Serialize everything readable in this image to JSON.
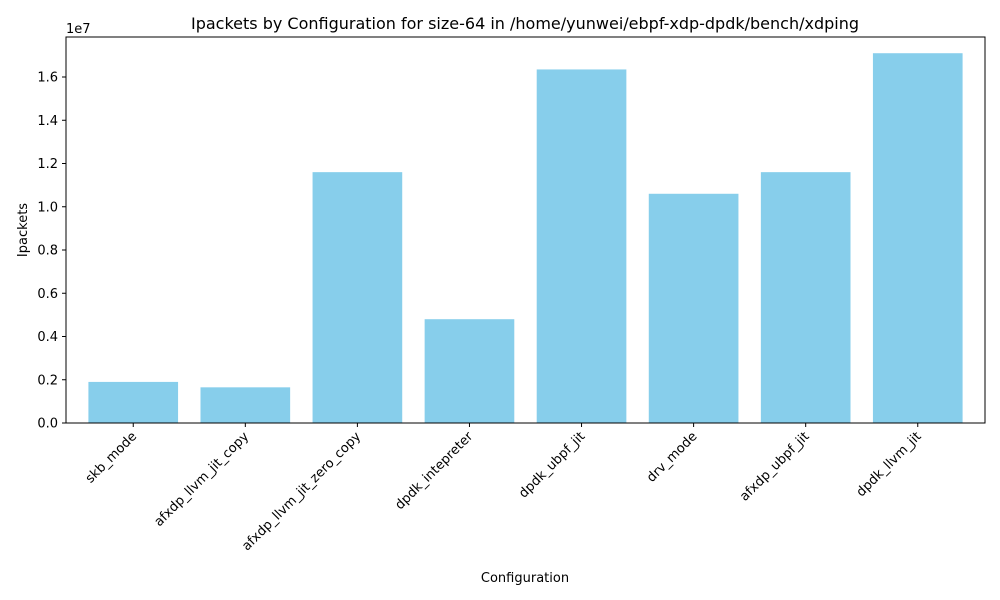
{
  "chart_data": {
    "type": "bar",
    "title": "Ipackets by Configuration for size-64 in /home/yunwei/ebpf-xdp-dpdk/bench/xdping",
    "xlabel": "Configuration",
    "ylabel": "Ipackets",
    "y_scale_label": "1e7",
    "y_scale": 10000000,
    "ylim": [
      0,
      17850000
    ],
    "yticks": [
      0,
      2000000,
      4000000,
      6000000,
      8000000,
      10000000,
      12000000,
      14000000,
      16000000
    ],
    "ytick_labels": [
      "0.0",
      "0.2",
      "0.4",
      "0.6",
      "0.8",
      "1.0",
      "1.2",
      "1.4",
      "1.6"
    ],
    "categories": [
      "skb_mode",
      "afxdp_llvm_jit_copy",
      "afxdp_llvm_jit_zero_copy",
      "dpdk_intepreter",
      "dpdk_ubpf_jit",
      "drv_mode",
      "afxdp_ubpf_jit",
      "dpdk_llvm_jit"
    ],
    "values": [
      1900000,
      1650000,
      11600000,
      4800000,
      16350000,
      10600000,
      11600000,
      17100000
    ],
    "bar_color": "#87CEEB",
    "grid": false,
    "legend": "none"
  }
}
